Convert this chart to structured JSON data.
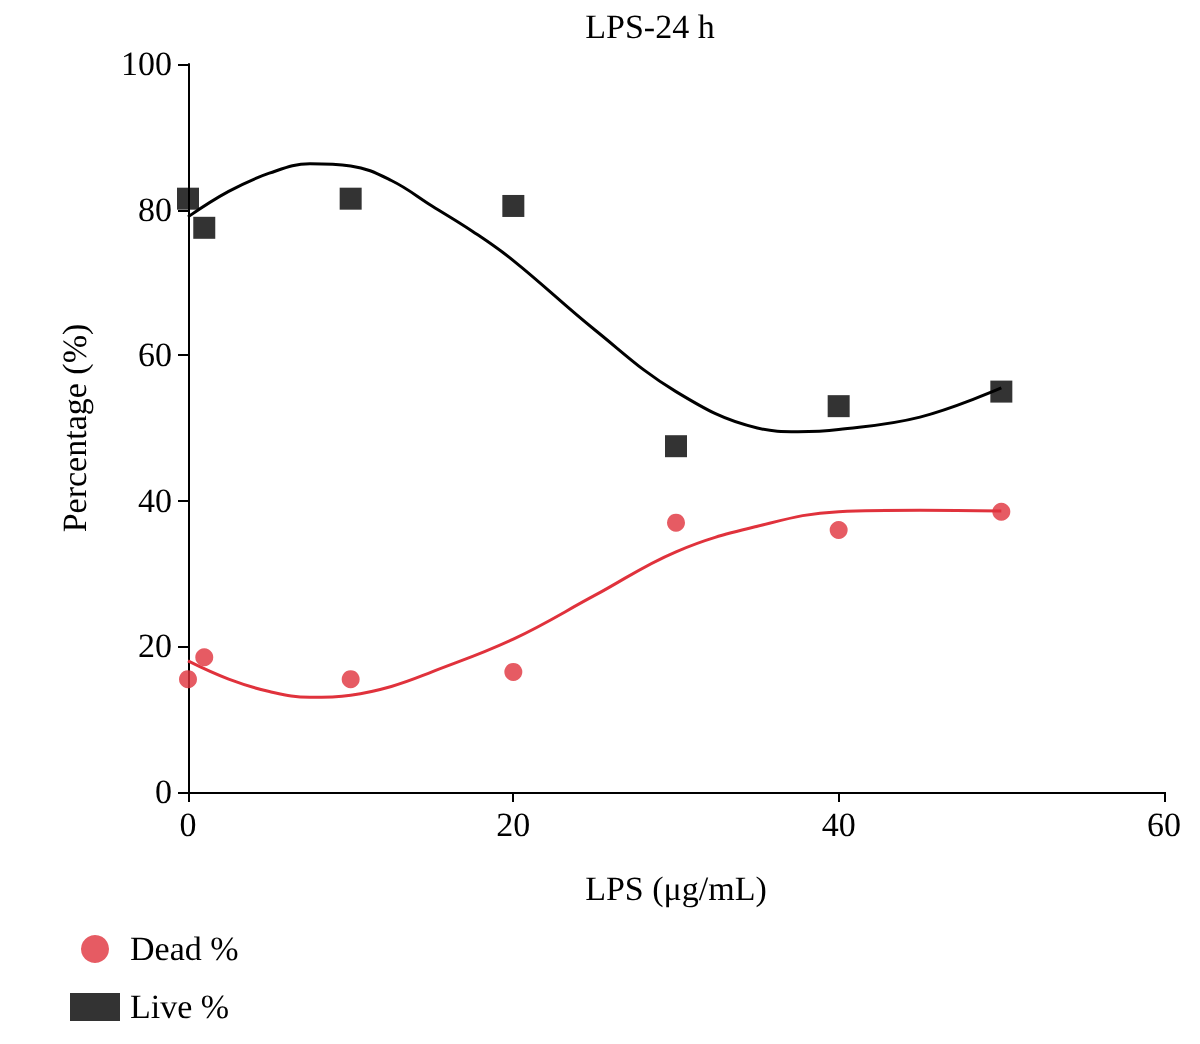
{
  "chart_data": {
    "type": "scatter",
    "title": "LPS-24 h",
    "xlabel": "LPS (μg/mL)",
    "ylabel": "Percentage (%)",
    "xlim": [
      0,
      60
    ],
    "xticks": [
      0,
      20,
      40,
      60
    ],
    "ylim": [
      0,
      100
    ],
    "yticks": [
      0,
      20,
      40,
      60,
      80,
      100
    ],
    "grid": false,
    "legend": "bottom left",
    "series": [
      {
        "name": "Dead %",
        "color": "#e0323c",
        "marker": "circle",
        "x": [
          0,
          1,
          10,
          20,
          30,
          40,
          50
        ],
        "values": [
          15.5,
          18.5,
          15.5,
          16.5,
          37,
          36,
          38.5
        ]
      },
      {
        "name": "Live %",
        "color": "#000000",
        "marker": "square",
        "x": [
          0,
          1,
          10,
          20,
          30,
          40,
          50
        ],
        "values": [
          81.5,
          77.5,
          81.5,
          80.5,
          47.5,
          53,
          55
        ]
      },
      {
        "type": "line",
        "color": "#e0323c",
        "marker": "none",
        "x": [
          0,
          2.5,
          5,
          7.5,
          10,
          12.5,
          15,
          20,
          25,
          30,
          35,
          40,
          45,
          50
        ],
        "values": [
          18,
          15.5,
          13.8,
          13,
          13.3,
          14.5,
          16.5,
          21,
          27,
          33,
          36.5,
          38.5,
          38.7,
          38.6
        ]
      },
      {
        "type": "line",
        "color": "#000000",
        "marker": "none",
        "x": [
          0,
          2.5,
          5,
          7.5,
          10,
          12.5,
          15,
          17.5,
          20,
          25,
          30,
          35,
          37.5,
          40,
          45,
          50
        ],
        "values": [
          79,
          82.5,
          85,
          86.3,
          86,
          84,
          80.5,
          77,
          73,
          63.5,
          55,
          50,
          49.5,
          49.8,
          51.5,
          55.5
        ]
      }
    ]
  }
}
